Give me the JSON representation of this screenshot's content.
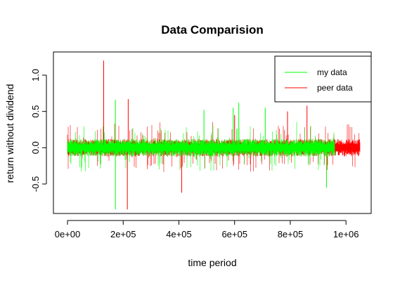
{
  "chart_data": {
    "type": "line",
    "title": "Data Comparision",
    "xlabel": "time period",
    "ylabel": "return without dividend",
    "xlim": [
      0,
      1050000
    ],
    "ylim": [
      -0.85,
      1.2
    ],
    "x_ticks": [
      {
        "value": 0,
        "label": "0e+00"
      },
      {
        "value": 200000,
        "label": "2e+05"
      },
      {
        "value": 400000,
        "label": "4e+05"
      },
      {
        "value": 600000,
        "label": "6e+05"
      },
      {
        "value": 800000,
        "label": "8e+05"
      },
      {
        "value": 1000000,
        "label": "1e+06"
      }
    ],
    "y_ticks": [
      {
        "value": -0.5,
        "label": "-0.5"
      },
      {
        "value": 0.0,
        "label": "0.0"
      },
      {
        "value": 0.5,
        "label": "0.5"
      },
      {
        "value": 1.0,
        "label": "1.0"
      }
    ],
    "grid": false,
    "legend_position": "top-right",
    "series": [
      {
        "name": "peer data",
        "color": "#ff0000",
        "x_range": [
          0,
          1050000
        ],
        "typical_band": [
          -0.1,
          0.1
        ],
        "spikes": [
          {
            "x": 130000,
            "y": 1.2
          },
          {
            "x": 215000,
            "y": -0.85
          },
          {
            "x": 218000,
            "y": 0.67
          },
          {
            "x": 410000,
            "y": -0.62
          },
          {
            "x": 600000,
            "y": 0.45
          },
          {
            "x": 790000,
            "y": 0.5
          },
          {
            "x": 860000,
            "y": 0.58
          }
        ]
      },
      {
        "name": "my data",
        "color": "#00ff00",
        "x_range": [
          0,
          960000
        ],
        "typical_band": [
          -0.1,
          0.1
        ],
        "spikes": [
          {
            "x": 172000,
            "y": 0.66
          },
          {
            "x": 172000,
            "y": -0.85
          },
          {
            "x": 490000,
            "y": 0.52
          },
          {
            "x": 595000,
            "y": 0.55
          },
          {
            "x": 615000,
            "y": 0.62
          },
          {
            "x": 710000,
            "y": 0.55
          },
          {
            "x": 930000,
            "y": -0.55
          }
        ]
      }
    ]
  }
}
